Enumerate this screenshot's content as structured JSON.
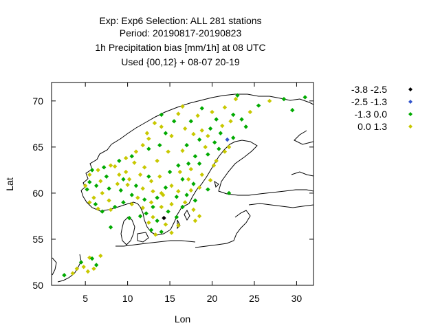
{
  "chart_data": {
    "type": "scatter",
    "title_lines": [
      "Exp: Exp6   Selection: ALL     281 stations",
      "Period: 20190817-20190823",
      "1h Precipitation bias [mm/1h] at  08 UTC",
      "Used {00,12} + 08-07 20-19"
    ],
    "xlabel": "Lon",
    "ylabel": "Lat",
    "xlim": [
      1,
      32
    ],
    "ylim": [
      50,
      72
    ],
    "xticks": [
      5,
      10,
      15,
      20,
      25,
      30
    ],
    "yticks": [
      50,
      55,
      60,
      65,
      70
    ],
    "legend_position": "top-right, outside plot",
    "series": [
      {
        "name": "-3.8 -2.5",
        "color": "#000000",
        "points": [
          [
            14.3,
            57.3
          ]
        ]
      },
      {
        "name": "-2.5 -1.3",
        "color": "#3355cc",
        "points": [
          [
            21.8,
            65.8
          ]
        ]
      },
      {
        "name": "-1.3 0.0",
        "color": "#00aa00",
        "points": [
          [
            31.0,
            70.4
          ],
          [
            28.5,
            70.2
          ],
          [
            25.5,
            69.5
          ],
          [
            23.0,
            70.6
          ],
          [
            18.8,
            69.2
          ],
          [
            29.5,
            69.0
          ],
          [
            22.5,
            68.5
          ],
          [
            20.5,
            68.0
          ],
          [
            17.5,
            67.8
          ],
          [
            19.8,
            67.0
          ],
          [
            21.0,
            66.5
          ],
          [
            22.5,
            66.0
          ],
          [
            18.5,
            65.8
          ],
          [
            20.3,
            65.5
          ],
          [
            20.8,
            64.8
          ],
          [
            19.5,
            64.2
          ],
          [
            18.0,
            64.0
          ],
          [
            17.2,
            63.2
          ],
          [
            16.0,
            63.0
          ],
          [
            18.5,
            63.2
          ],
          [
            15.0,
            62.3
          ],
          [
            16.5,
            61.5
          ],
          [
            17.8,
            61.0
          ],
          [
            14.5,
            60.6
          ],
          [
            12.5,
            61.8
          ],
          [
            11.0,
            60.8
          ],
          [
            9.5,
            61.5
          ],
          [
            7.5,
            61.8
          ],
          [
            5.5,
            61.2
          ],
          [
            5.2,
            60.4
          ],
          [
            6.3,
            60.8
          ],
          [
            7.8,
            60.5
          ],
          [
            9.2,
            60.3
          ],
          [
            10.5,
            59.8
          ],
          [
            12.0,
            59.3
          ],
          [
            13.5,
            59.5
          ],
          [
            15.8,
            59.6
          ],
          [
            17.0,
            59.8
          ],
          [
            18.0,
            59.2
          ],
          [
            16.5,
            58.5
          ],
          [
            14.8,
            58.0
          ],
          [
            13.0,
            58.5
          ],
          [
            12.2,
            57.8
          ],
          [
            13.5,
            57.0
          ],
          [
            15.8,
            57.4
          ],
          [
            12.8,
            56.0
          ],
          [
            14.0,
            55.8
          ],
          [
            7.0,
            58.0
          ],
          [
            6.2,
            58.8
          ],
          [
            8.5,
            58.5
          ],
          [
            9.5,
            59.0
          ],
          [
            5.8,
            62.5
          ],
          [
            7.2,
            62.8
          ],
          [
            9.0,
            63.5
          ],
          [
            10.5,
            64.0
          ],
          [
            12.5,
            64.8
          ],
          [
            13.8,
            65.2
          ],
          [
            14.5,
            66.5
          ],
          [
            15.5,
            67.8
          ],
          [
            14.0,
            68.5
          ],
          [
            17.0,
            65.2
          ],
          [
            23.5,
            68.0
          ],
          [
            24.0,
            67.2
          ],
          [
            4.5,
            52.5
          ],
          [
            5.8,
            52.9
          ],
          [
            6.3,
            52.2
          ],
          [
            2.5,
            51.1
          ],
          [
            8.0,
            56.3
          ],
          [
            22.0,
            60.0
          ],
          [
            19.5,
            60.4
          ],
          [
            11.5,
            57.5
          ],
          [
            10.2,
            57.3
          ]
        ]
      },
      {
        "name": "0.0 1.3",
        "color": "#c8c800",
        "points": [
          [
            26.8,
            70.0
          ],
          [
            24.5,
            68.8
          ],
          [
            21.5,
            69.3
          ],
          [
            18.3,
            68.4
          ],
          [
            16.0,
            68.6
          ],
          [
            13.2,
            67.6
          ],
          [
            15.2,
            66.2
          ],
          [
            18.8,
            66.8
          ],
          [
            12.5,
            65.9
          ],
          [
            11.8,
            65.2
          ],
          [
            14.8,
            64.5
          ],
          [
            16.5,
            64.6
          ],
          [
            19.2,
            65.0
          ],
          [
            21.5,
            64.5
          ],
          [
            20.5,
            63.5
          ],
          [
            13.5,
            63.5
          ],
          [
            12.0,
            62.8
          ],
          [
            10.8,
            63.3
          ],
          [
            8.5,
            62.9
          ],
          [
            9.8,
            62.3
          ],
          [
            11.5,
            62.0
          ],
          [
            13.8,
            61.8
          ],
          [
            16.2,
            62.3
          ],
          [
            17.5,
            62.6
          ],
          [
            18.8,
            62.0
          ],
          [
            15.2,
            60.8
          ],
          [
            13.0,
            60.2
          ],
          [
            11.8,
            60.5
          ],
          [
            10.0,
            60.9
          ],
          [
            8.8,
            61.0
          ],
          [
            6.8,
            61.3
          ],
          [
            7.0,
            60.0
          ],
          [
            6.0,
            59.5
          ],
          [
            7.8,
            59.2
          ],
          [
            10.5,
            58.8
          ],
          [
            11.2,
            59.5
          ],
          [
            12.8,
            59.0
          ],
          [
            14.2,
            59.8
          ],
          [
            16.0,
            60.2
          ],
          [
            17.5,
            60.3
          ],
          [
            18.5,
            60.6
          ],
          [
            19.8,
            61.4
          ],
          [
            15.2,
            58.8
          ],
          [
            16.8,
            59.0
          ],
          [
            14.0,
            58.5
          ],
          [
            11.8,
            58.4
          ],
          [
            12.5,
            56.8
          ],
          [
            13.0,
            57.4
          ],
          [
            14.5,
            56.6
          ],
          [
            16.0,
            56.5
          ],
          [
            15.2,
            55.7
          ],
          [
            13.3,
            55.5
          ],
          [
            18.5,
            57.5
          ],
          [
            17.8,
            58.2
          ],
          [
            8.0,
            58.2
          ],
          [
            6.5,
            58.3
          ],
          [
            5.5,
            59.0
          ],
          [
            5.0,
            60.8
          ],
          [
            5.5,
            62.0
          ],
          [
            6.5,
            62.5
          ],
          [
            8.0,
            63.0
          ],
          [
            9.8,
            63.8
          ],
          [
            11.0,
            64.5
          ],
          [
            12.3,
            66.5
          ],
          [
            14.0,
            67.2
          ],
          [
            16.8,
            67.0
          ],
          [
            17.8,
            66.4
          ],
          [
            19.5,
            66.2
          ],
          [
            21.2,
            67.3
          ],
          [
            22.2,
            67.8
          ],
          [
            20.0,
            68.8
          ],
          [
            16.5,
            69.4
          ],
          [
            22.8,
            70.2
          ],
          [
            5.3,
            51.5
          ],
          [
            4.8,
            52.0
          ],
          [
            5.5,
            53.0
          ],
          [
            6.8,
            53.2
          ],
          [
            4.0,
            51.8
          ],
          [
            3.5,
            51.3
          ],
          [
            6.0,
            51.8
          ],
          [
            9.0,
            62.0
          ],
          [
            10.2,
            61.5
          ],
          [
            12.8,
            61.3
          ],
          [
            14.0,
            60.0
          ],
          [
            17.2,
            61.5
          ],
          [
            18.0,
            57.0
          ],
          [
            20.2,
            63.0
          ],
          [
            22.0,
            65.0
          ]
        ]
      }
    ]
  }
}
